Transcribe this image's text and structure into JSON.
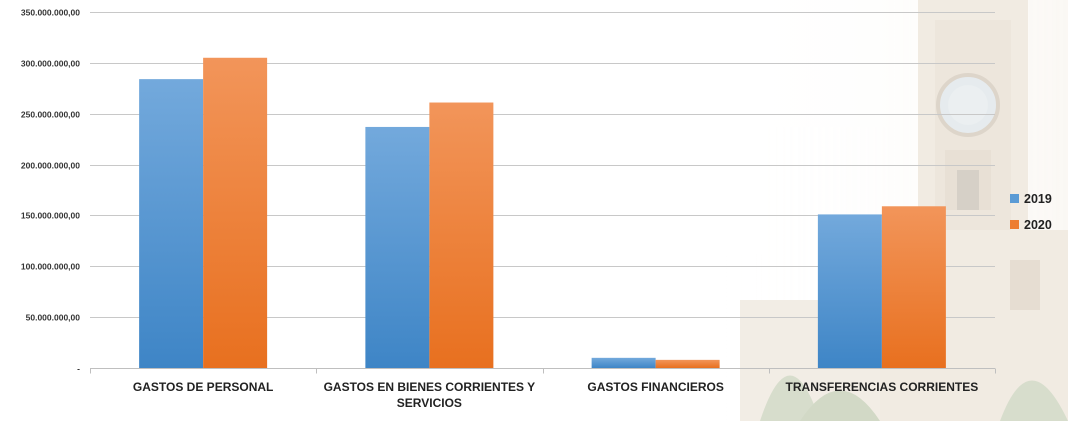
{
  "chart_data": {
    "type": "bar",
    "categories": [
      [
        "GASTOS DE PERSONAL"
      ],
      [
        "GASTOS EN BIENES CORRIENTES Y",
        "SERVICIOS"
      ],
      [
        "GASTOS FINANCIEROS"
      ],
      [
        "TRANSFERENCIAS CORRIENTES"
      ]
    ],
    "series": [
      {
        "name": "2019",
        "values": [
          284000000,
          237000000,
          10000000,
          151000000
        ],
        "color": "#5B9BD5"
      },
      {
        "name": "2020",
        "values": [
          305000000,
          261000000,
          8000000,
          159000000
        ],
        "color": "#ED7D31"
      }
    ],
    "ylim": [
      0,
      350000000
    ],
    "yticks": [
      {
        "value": 0,
        "label": "-"
      },
      {
        "value": 50000000,
        "label": "50.000.000,00"
      },
      {
        "value": 100000000,
        "label": "100.000.000,00"
      },
      {
        "value": 150000000,
        "label": "150.000.000,00"
      },
      {
        "value": 200000000,
        "label": "200.000.000,00"
      },
      {
        "value": 250000000,
        "label": "250.000.000,00"
      },
      {
        "value": 300000000,
        "label": "300.000.000,00"
      },
      {
        "value": 350000000,
        "label": "350.000.000,00"
      }
    ],
    "grid": true,
    "legend": "right",
    "title": "",
    "xlabel": "",
    "ylabel": ""
  }
}
